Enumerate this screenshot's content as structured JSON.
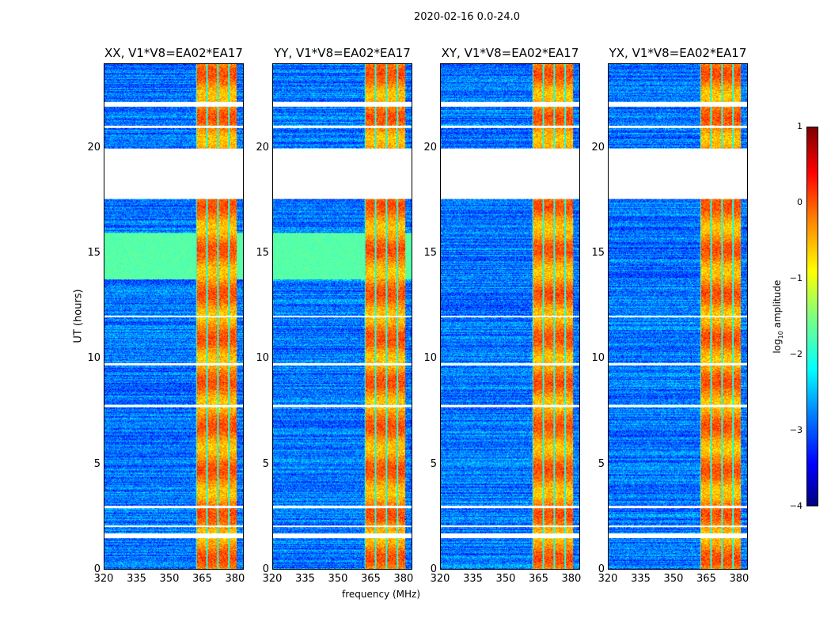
{
  "chart_data": {
    "type": "heatmap",
    "suptitle": "2020-02-16 0.0-24.0",
    "xlabel": "frequency (MHz)",
    "ylabel": "UT (hours)",
    "xlim": [
      320,
      384
    ],
    "ylim": [
      0,
      24
    ],
    "xticks": [
      "320",
      "335",
      "350",
      "365",
      "380"
    ],
    "xtick_values": [
      320,
      335,
      350,
      365,
      380
    ],
    "yticks": [
      "0",
      "5",
      "10",
      "15",
      "20"
    ],
    "ytick_values": [
      0,
      5,
      10,
      15,
      20
    ],
    "panels": [
      {
        "title": "XX, V1*V8=EA02*EA17",
        "elevated_band_hours": [
          13.8,
          16.0
        ]
      },
      {
        "title": "YY, V1*V8=EA02*EA17",
        "elevated_band_hours": [
          13.8,
          16.0
        ]
      },
      {
        "title": "XY, V1*V8=EA02*EA17",
        "elevated_band_hours": null
      },
      {
        "title": "YX, V1*V8=EA02*EA17",
        "elevated_band_hours": null
      }
    ],
    "colormap": "jet",
    "vmin": -4,
    "vmax": 1,
    "colorbar": {
      "label_prefix": "log",
      "label_sub": "10",
      "label_suffix": " amplitude",
      "ticks": [
        "1",
        "0",
        "−1",
        "−2",
        "−3",
        "−4"
      ],
      "tick_values": [
        1,
        0,
        -1,
        -2,
        -3,
        -4
      ]
    },
    "background_log_amplitude": -2.8,
    "rfi_band_mhz": [
      362,
      381
    ],
    "rfi_log_amplitude": -0.3,
    "flagged_hours": [
      [
        17.6,
        20.0
      ],
      [
        21.0,
        21.1
      ],
      [
        22.0,
        22.2
      ],
      [
        1.5,
        1.7
      ],
      [
        2.0,
        2.1
      ],
      [
        2.9,
        3.0
      ],
      [
        7.7,
        7.8
      ],
      [
        9.7,
        9.8
      ],
      [
        12.0,
        12.05
      ]
    ]
  }
}
